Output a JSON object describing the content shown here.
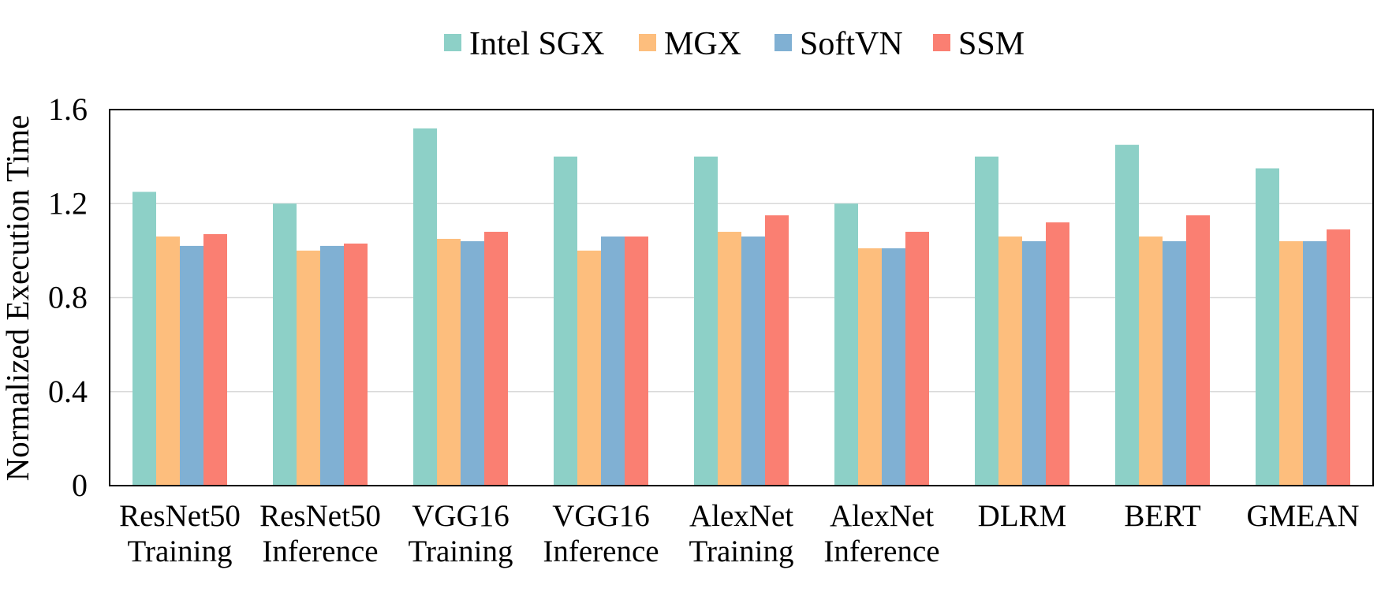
{
  "chart_data": {
    "type": "bar",
    "title": "",
    "xlabel": "",
    "ylabel": "Normalized Execution Time",
    "ylim": [
      0,
      1.6
    ],
    "yticks": [
      "0",
      "0.4",
      "0.8",
      "1.2",
      "1.6"
    ],
    "ytick_values": [
      0,
      0.4,
      0.8,
      1.2,
      1.6
    ],
    "grid": true,
    "legend_position": "top-center",
    "categories": [
      [
        "ResNet50",
        "Training"
      ],
      [
        "ResNet50",
        "Inference"
      ],
      [
        "VGG16",
        "Training"
      ],
      [
        "VGG16",
        "Inference"
      ],
      [
        "AlexNet",
        "Training"
      ],
      [
        "AlexNet",
        "Inference"
      ],
      [
        "DLRM"
      ],
      [
        "BERT"
      ],
      [
        "GMEAN"
      ]
    ],
    "series": [
      {
        "name": "Intel SGX",
        "color": "#8dd0c7",
        "values": [
          1.25,
          1.2,
          1.52,
          1.4,
          1.4,
          1.2,
          1.4,
          1.45,
          1.35
        ]
      },
      {
        "name": "MGX",
        "color": "#fdbe7d",
        "values": [
          1.06,
          1.0,
          1.05,
          1.0,
          1.08,
          1.01,
          1.06,
          1.06,
          1.04
        ]
      },
      {
        "name": "SoftVN",
        "color": "#80b0d3",
        "values": [
          1.02,
          1.02,
          1.04,
          1.06,
          1.06,
          1.01,
          1.04,
          1.04,
          1.04
        ]
      },
      {
        "name": "SSM",
        "color": "#fa7f72",
        "values": [
          1.07,
          1.03,
          1.08,
          1.06,
          1.15,
          1.08,
          1.12,
          1.15,
          1.09
        ]
      }
    ]
  }
}
